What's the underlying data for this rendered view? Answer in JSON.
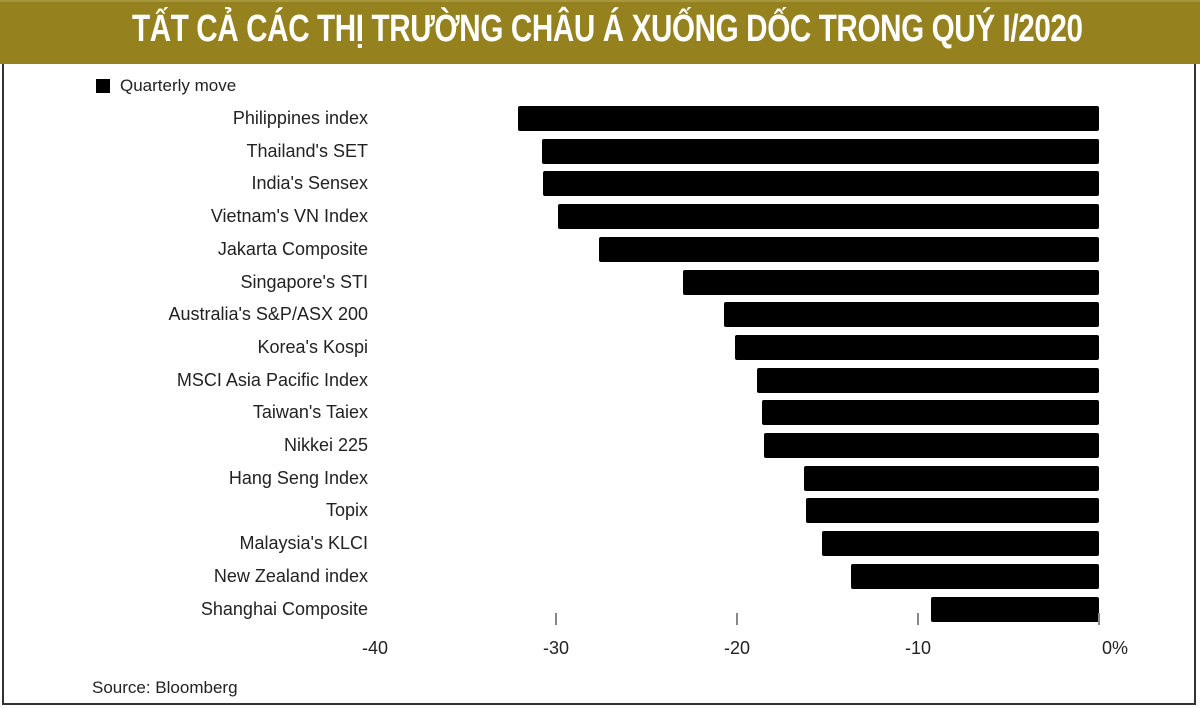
{
  "header": {
    "title": "TẤT CẢ CÁC THỊ TRƯỜNG CHÂU Á XUỐNG DỐC TRONG QUÝ I/2020",
    "banner_color": "#95821f"
  },
  "legend": {
    "label": "Quarterly move",
    "color": "#000000"
  },
  "source": "Source: Bloomberg",
  "chart_data": {
    "type": "bar",
    "orientation": "horizontal",
    "title": "TẤT CẢ CÁC THỊ TRƯỜNG CHÂU Á XUỐNG DỐC TRONG QUÝ I/2020",
    "xlabel": "",
    "ylabel": "",
    "xlim": [
      -40,
      0
    ],
    "x_ticks": [
      "-40",
      "-30",
      "-20",
      "-10",
      "0%"
    ],
    "legend": [
      "Quarterly move"
    ],
    "legend_position": "top-left",
    "grid": false,
    "categories": [
      "Philippines index",
      "Thailand's SET",
      "India's Sensex",
      "Vietnam's VN Index",
      "Jakarta Composite",
      "Singapore's STI",
      "Australia's S&P/ASX 200",
      "Korea's Kospi",
      "MSCI Asia Pacific Index",
      "Taiwan's Taiex",
      "Nikkei 225",
      "Hang Seng Index",
      "Topix",
      "Malaysia's KLCI",
      "New Zealand index",
      "Shanghai Composite"
    ],
    "series": [
      {
        "name": "Quarterly move",
        "values": [
          -32.1,
          -30.8,
          -30.7,
          -29.9,
          -27.6,
          -23.0,
          -20.7,
          -20.1,
          -18.9,
          -18.6,
          -18.5,
          -16.3,
          -16.2,
          -15.3,
          -13.7,
          -9.3
        ]
      }
    ],
    "source": "Source: Bloomberg"
  }
}
